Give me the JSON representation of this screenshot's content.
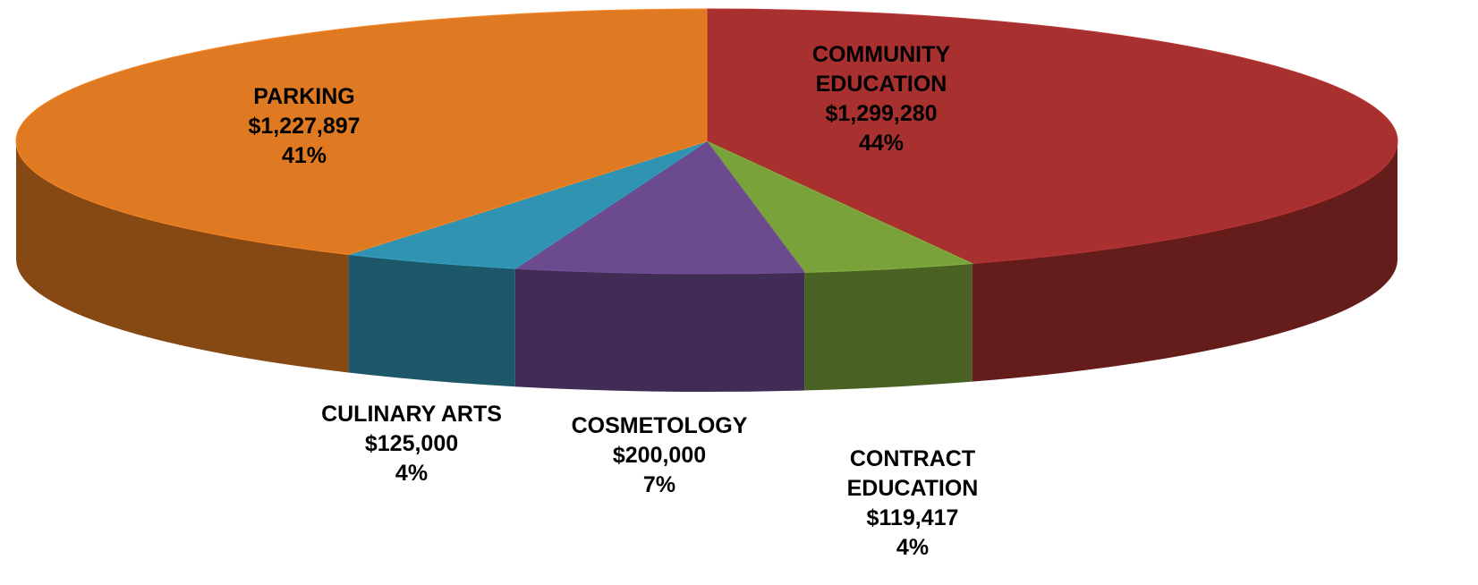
{
  "chart_data": {
    "type": "pie",
    "categories": [
      "COMMUNITY EDUCATION",
      "CONTRACT EDUCATION",
      "COSMETOLOGY",
      "CULINARY ARTS",
      "PARKING"
    ],
    "values": [
      1299280,
      119417,
      200000,
      125000,
      1227897
    ],
    "value_labels": [
      "$1,299,280",
      "$119,417",
      "$200,000",
      "$125,000",
      "$1,227,897"
    ],
    "percents": [
      44,
      4,
      7,
      4,
      41
    ],
    "percent_labels": [
      "44%",
      "4%",
      "7%",
      "4%",
      "41%"
    ],
    "colors": [
      "#a8302f",
      "#79a23a",
      "#6b4a8e",
      "#2f93b1",
      "#e07a22"
    ]
  }
}
